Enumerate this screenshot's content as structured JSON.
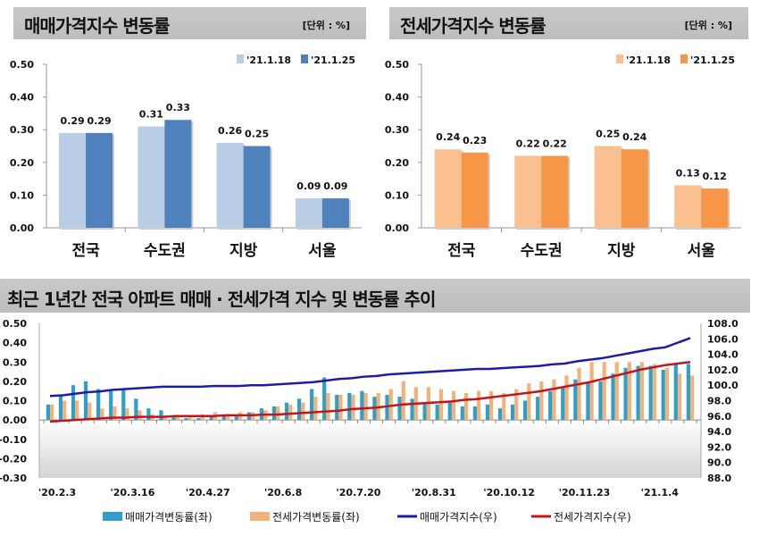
{
  "chart_data": [
    {
      "type": "bar",
      "title": "매매가격지수 변동률",
      "unit": "[단위 : %]",
      "categories": [
        "전국",
        "수도권",
        "지방",
        "서울"
      ],
      "series": [
        {
          "name": "'21.1.18",
          "values": [
            0.29,
            0.31,
            0.26,
            0.09
          ],
          "color": "#b9cde5"
        },
        {
          "name": "'21.1.25",
          "values": [
            0.29,
            0.33,
            0.25,
            0.09
          ],
          "color": "#4f81bd"
        }
      ],
      "ylim": [
        0,
        0.5
      ],
      "yticks": [
        "0.00",
        "0.10",
        "0.20",
        "0.30",
        "0.40",
        "0.50"
      ],
      "legend": "top-right"
    },
    {
      "type": "bar",
      "title": "전세가격지수 변동률",
      "unit": "[단위 : %]",
      "categories": [
        "전국",
        "수도권",
        "지방",
        "서울"
      ],
      "series": [
        {
          "name": "'21.1.18",
          "values": [
            0.24,
            0.22,
            0.25,
            0.13
          ],
          "color": "#fac08f"
        },
        {
          "name": "'21.1.25",
          "values": [
            0.23,
            0.22,
            0.24,
            0.12
          ],
          "color": "#f79646"
        }
      ],
      "ylim": [
        0,
        0.5
      ],
      "yticks": [
        "0.00",
        "0.10",
        "0.20",
        "0.30",
        "0.40",
        "0.50"
      ],
      "legend": "top-right"
    },
    {
      "type": "bar+line",
      "title": "최근 1년간 전국 아파트 매매 · 전세가격 지수 및 변동률 추이",
      "x_tick_labels": [
        "'20.2.3",
        "'20.3.16",
        "'20.4.27",
        "'20.6.8",
        "'20.7.20",
        "'20.8.31",
        "'20.10.12",
        "'20.11.23",
        "'21.1.4"
      ],
      "x_tick_every_weeks": 6,
      "ylim_left": [
        -0.3,
        0.5
      ],
      "yticks_left": [
        "-0.30",
        "-0.20",
        "-0.10",
        "0.00",
        "0.10",
        "0.20",
        "0.30",
        "0.40",
        "0.50"
      ],
      "ylim_right": [
        88.0,
        108.0
      ],
      "yticks_right": [
        "88.0",
        "90.0",
        "92.0",
        "94.0",
        "96.0",
        "98.0",
        "100.0",
        "102.0",
        "104.0",
        "106.0",
        "108.0"
      ],
      "legend": "bottom",
      "series": [
        {
          "name": "매매가격변동률(좌)",
          "kind": "bar",
          "axis": "left",
          "color": "#2e9fcc",
          "values": [
            0.08,
            0.13,
            0.18,
            0.2,
            0.16,
            0.15,
            0.16,
            0.11,
            0.06,
            0.05,
            0.02,
            0.01,
            0.01,
            0.02,
            0.02,
            0.03,
            0.04,
            0.06,
            0.07,
            0.09,
            0.11,
            0.16,
            0.22,
            0.13,
            0.14,
            0.15,
            0.12,
            0.13,
            0.12,
            0.11,
            0.09,
            0.08,
            0.09,
            0.07,
            0.07,
            0.08,
            0.06,
            0.08,
            0.1,
            0.12,
            0.15,
            0.17,
            0.21,
            0.19,
            0.2,
            0.24,
            0.27,
            0.28,
            0.28,
            0.26,
            0.29,
            0.29
          ]
        },
        {
          "name": "전세가격변동률(좌)",
          "kind": "bar",
          "axis": "left",
          "color": "#f2b27c",
          "values": [
            0.08,
            0.1,
            0.1,
            0.09,
            0.06,
            0.07,
            0.06,
            0.05,
            0.03,
            0.02,
            0.02,
            0.02,
            0.03,
            0.04,
            0.03,
            0.04,
            0.04,
            0.05,
            0.07,
            0.08,
            0.09,
            0.12,
            0.14,
            0.13,
            0.13,
            0.14,
            0.14,
            0.16,
            0.2,
            0.17,
            0.17,
            0.16,
            0.15,
            0.14,
            0.15,
            0.15,
            0.14,
            0.16,
            0.19,
            0.2,
            0.21,
            0.23,
            0.27,
            0.3,
            0.3,
            0.3,
            0.3,
            0.3,
            0.29,
            0.27,
            0.24,
            0.23
          ]
        },
        {
          "name": "매매가격지수(우)",
          "kind": "line",
          "axis": "right",
          "color": "#1c1ca8",
          "values": [
            98.6,
            98.7,
            98.9,
            99.1,
            99.2,
            99.4,
            99.5,
            99.6,
            99.7,
            99.8,
            99.8,
            99.8,
            99.8,
            99.9,
            99.9,
            99.9,
            100.0,
            100.0,
            100.1,
            100.2,
            100.3,
            100.4,
            100.6,
            100.8,
            100.9,
            101.1,
            101.2,
            101.4,
            101.5,
            101.6,
            101.7,
            101.8,
            101.9,
            102.0,
            102.1,
            102.1,
            102.2,
            102.3,
            102.4,
            102.5,
            102.7,
            102.8,
            103.1,
            103.3,
            103.5,
            103.8,
            104.1,
            104.4,
            104.7,
            104.9,
            105.5,
            106.1
          ]
        },
        {
          "name": "전세가격지수(우)",
          "kind": "line",
          "axis": "right",
          "color": "#c0161c",
          "values": [
            95.3,
            95.4,
            95.5,
            95.6,
            95.7,
            95.8,
            95.8,
            95.9,
            95.9,
            95.9,
            96.0,
            96.0,
            96.0,
            96.0,
            96.1,
            96.1,
            96.1,
            96.2,
            96.2,
            96.3,
            96.4,
            96.5,
            96.6,
            96.7,
            96.9,
            97.0,
            97.1,
            97.3,
            97.5,
            97.6,
            97.7,
            97.8,
            97.9,
            98.1,
            98.2,
            98.4,
            98.6,
            98.8,
            99.0,
            99.2,
            99.5,
            99.8,
            100.1,
            100.4,
            100.8,
            101.2,
            101.6,
            102.0,
            102.3,
            102.6,
            102.8,
            103.0
          ]
        }
      ]
    }
  ]
}
